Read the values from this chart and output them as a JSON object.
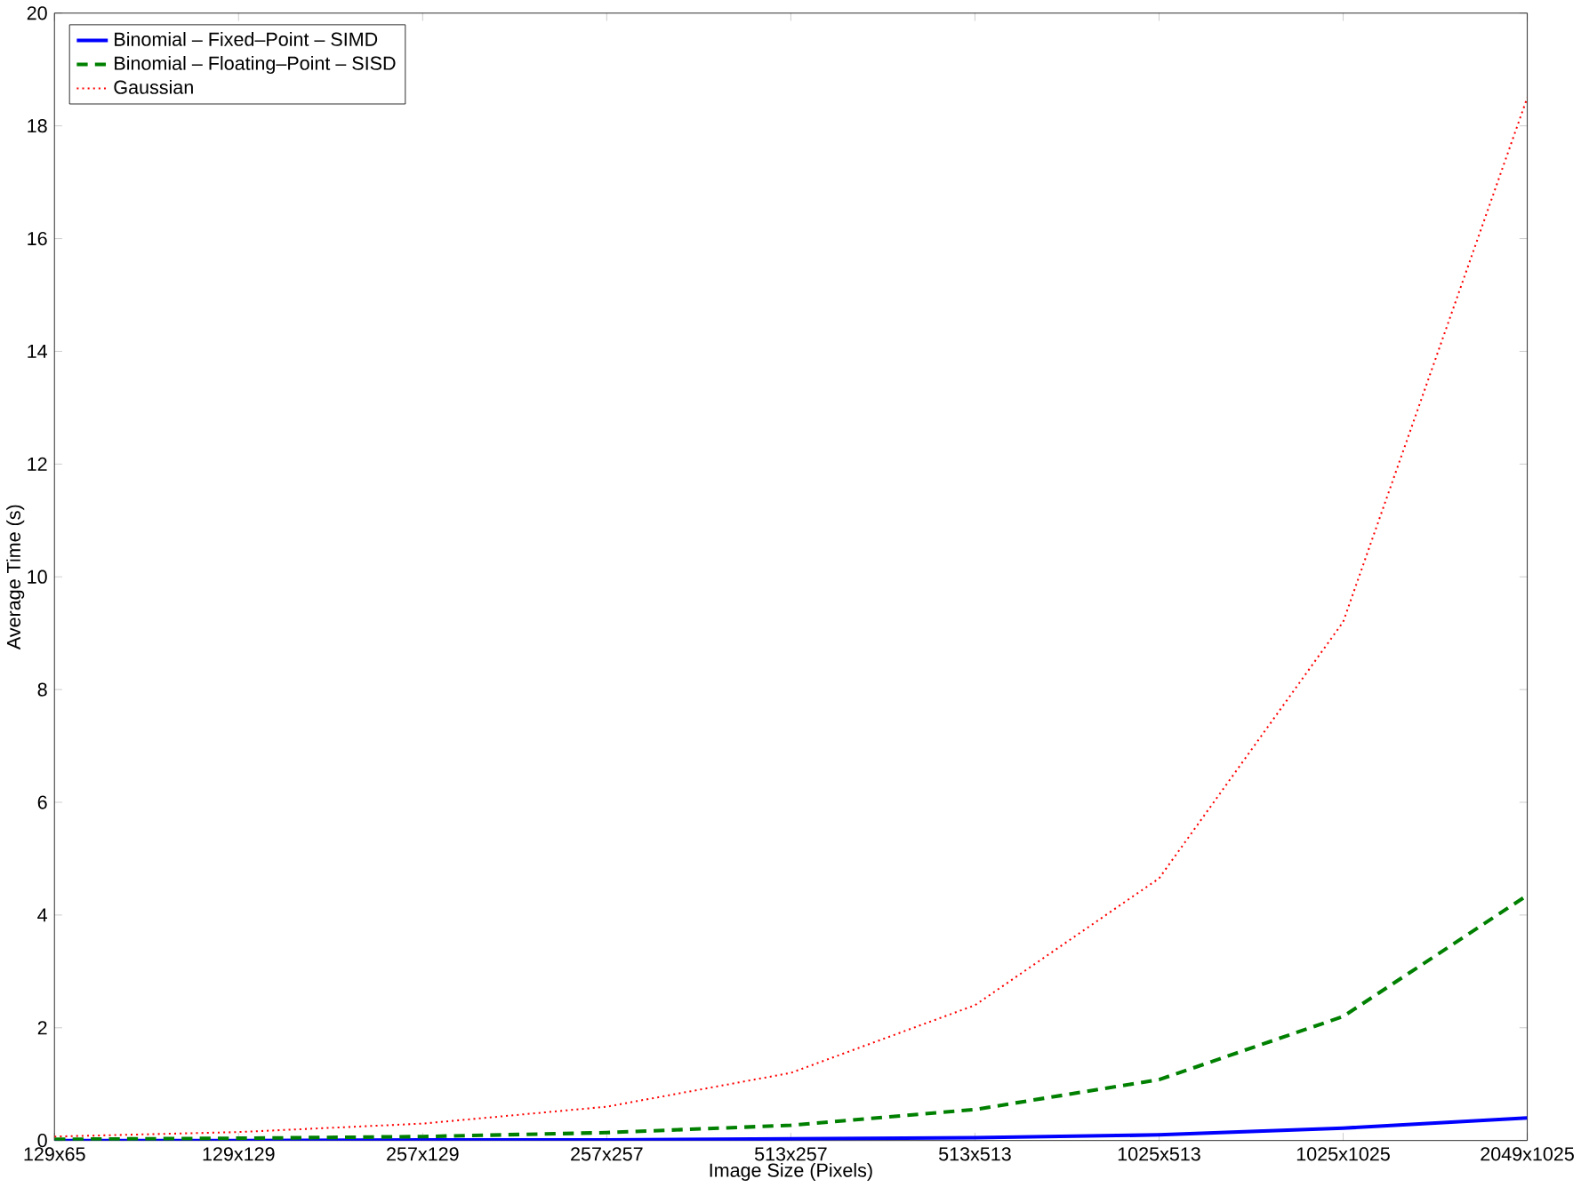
{
  "chart_data": {
    "type": "line",
    "xlabel": "Image Size (Pixels)",
    "ylabel": "Average Time (s)",
    "categories": [
      "129x65",
      "129x129",
      "257x129",
      "257x257",
      "513x257",
      "513x513",
      "1025x513",
      "1025x1025",
      "2049x1025"
    ],
    "series": [
      {
        "name": "Binomial – Fixed–Point – SIMD",
        "color": "#0000ff",
        "line_style": "solid",
        "values": [
          0.0,
          0.0,
          0.01,
          0.01,
          0.03,
          0.05,
          0.1,
          0.22,
          0.4
        ]
      },
      {
        "name": "Binomial – Floating–Point – SISD",
        "color": "#008000",
        "line_style": "dashed",
        "values": [
          0.02,
          0.04,
          0.07,
          0.14,
          0.27,
          0.55,
          1.08,
          2.2,
          4.35
        ]
      },
      {
        "name": "Gaussian",
        "color": "#ff0000",
        "line_style": "dotted",
        "values": [
          0.07,
          0.15,
          0.3,
          0.6,
          1.2,
          2.4,
          4.65,
          9.2,
          18.5
        ]
      }
    ],
    "ylim": [
      0,
      20
    ],
    "yticks": [
      0,
      2,
      4,
      6,
      8,
      10,
      12,
      14,
      16,
      18,
      20
    ],
    "grid": false,
    "legend": "top left",
    "marker": "none"
  }
}
